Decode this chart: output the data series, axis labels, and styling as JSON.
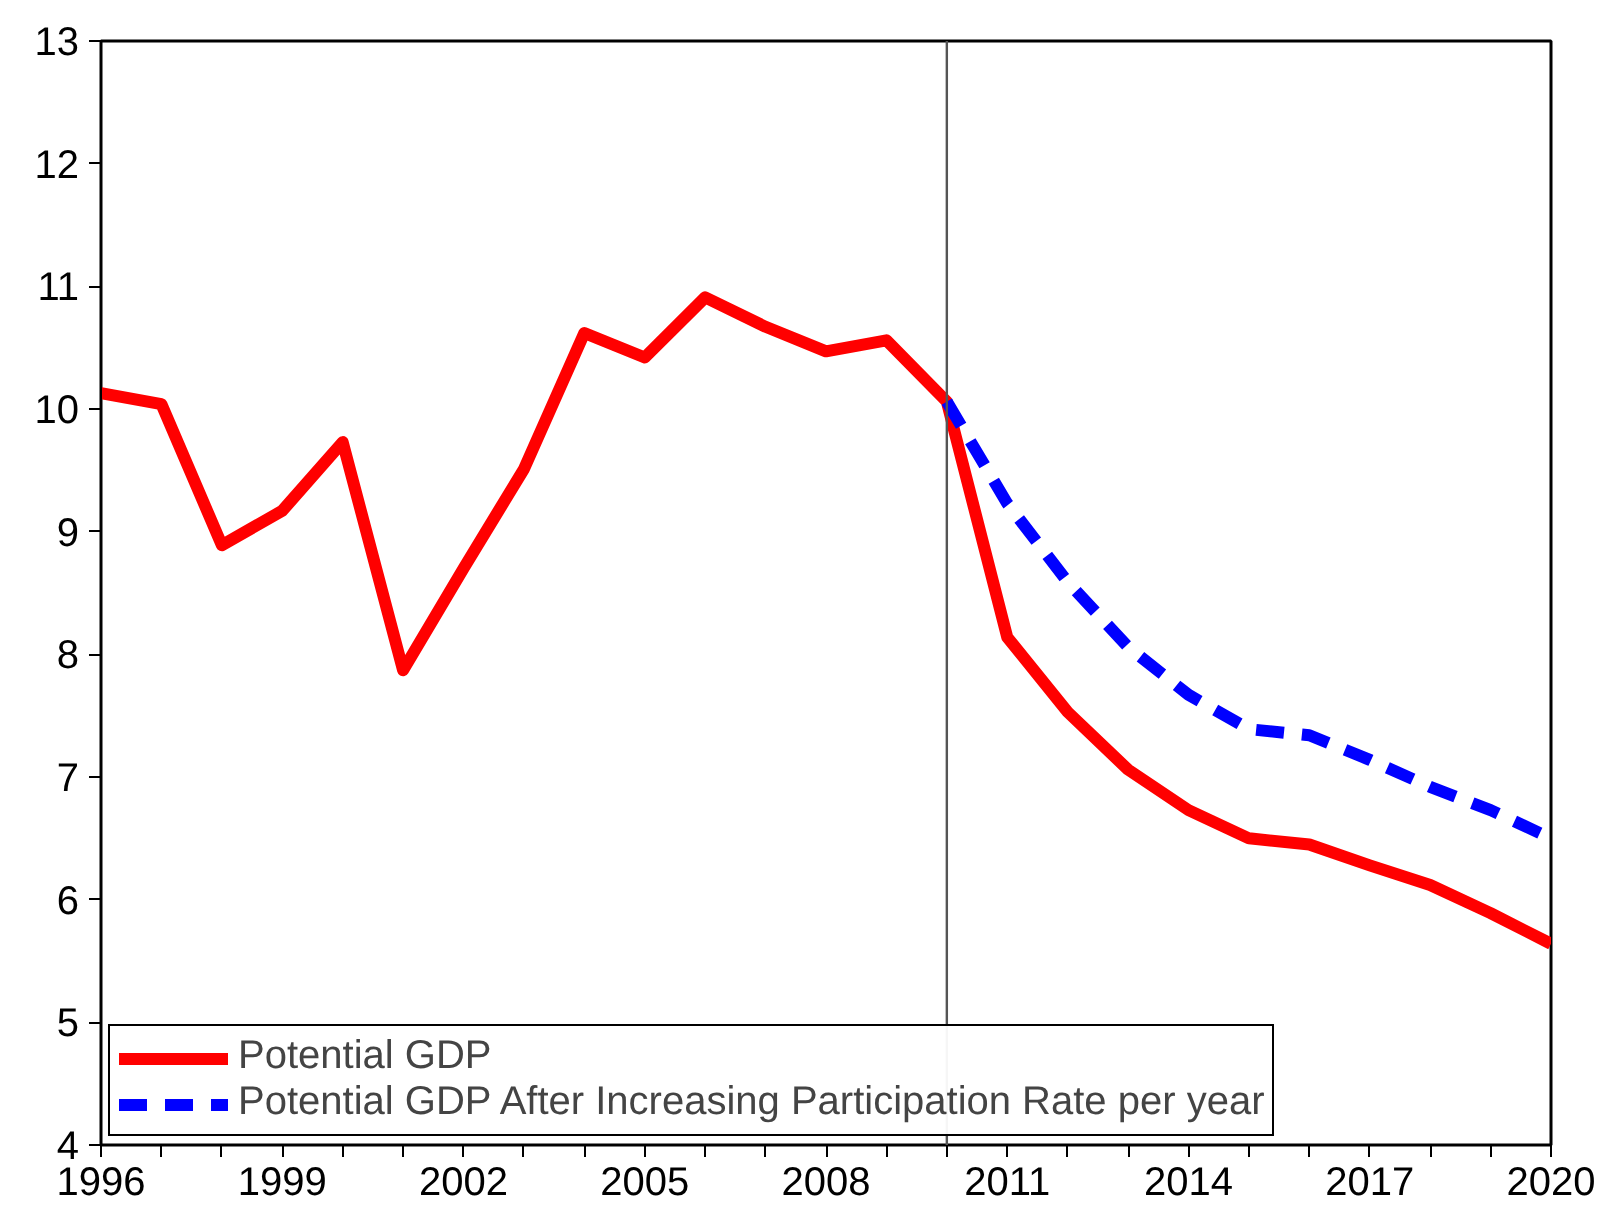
{
  "chart_data": {
    "type": "line",
    "x": [
      1996,
      1997,
      1998,
      1999,
      2000,
      2001,
      2002,
      2003,
      2004,
      2005,
      2006,
      2007,
      2008,
      2009,
      2010,
      2011,
      2012,
      2013,
      2014,
      2015,
      2016,
      2017,
      2018,
      2019,
      2020
    ],
    "series": [
      {
        "name": "Potential GDP",
        "color": "#ff0000",
        "line_style": "solid",
        "values": [
          10.13,
          10.04,
          8.89,
          9.17,
          9.73,
          7.87,
          8.7,
          9.51,
          10.62,
          10.42,
          10.91,
          10.67,
          10.47,
          10.56,
          10.06,
          8.14,
          7.53,
          7.06,
          6.73,
          6.5,
          6.45,
          6.28,
          6.12,
          5.89,
          5.64
        ]
      },
      {
        "name": "Potential GDP After Increasing Participation Rate per year",
        "color": "#0000ff",
        "line_style": "dashed",
        "x": [
          2010,
          2011,
          2012,
          2013,
          2014,
          2015,
          2016,
          2017,
          2018,
          2019,
          2020
        ],
        "values": [
          10.06,
          9.23,
          8.59,
          8.06,
          7.67,
          7.39,
          7.34,
          7.14,
          6.92,
          6.73,
          6.5
        ]
      }
    ],
    "xlim": [
      1996,
      2020
    ],
    "ylim": [
      4,
      13
    ],
    "xticks": [
      1996,
      {
        "value": 1997,
        "label": null
      },
      {
        "value": 1998,
        "label": null
      },
      1999,
      {
        "value": 2000,
        "label": null
      },
      {
        "value": 2001,
        "label": null
      },
      2002,
      {
        "value": 2003,
        "label": null
      },
      {
        "value": 2004,
        "label": null
      },
      2005,
      {
        "value": 2006,
        "label": null
      },
      {
        "value": 2007,
        "label": null
      },
      2008,
      {
        "value": 2009,
        "label": null
      },
      {
        "value": 2010,
        "label": null
      },
      2011,
      {
        "value": 2012,
        "label": null
      },
      {
        "value": 2013,
        "label": null
      },
      2014,
      {
        "value": 2015,
        "label": null
      },
      {
        "value": 2016,
        "label": null
      },
      2017,
      {
        "value": 2018,
        "label": null
      },
      {
        "value": 2019,
        "label": null
      },
      2020
    ],
    "yticks": [
      4,
      5,
      6,
      7,
      8,
      9,
      10,
      11,
      12,
      13
    ],
    "ref_lines": [
      {
        "axis": "x",
        "value": 2010,
        "color": "#555555"
      }
    ],
    "grid": false,
    "legend": "bottom left",
    "marker": "none"
  }
}
